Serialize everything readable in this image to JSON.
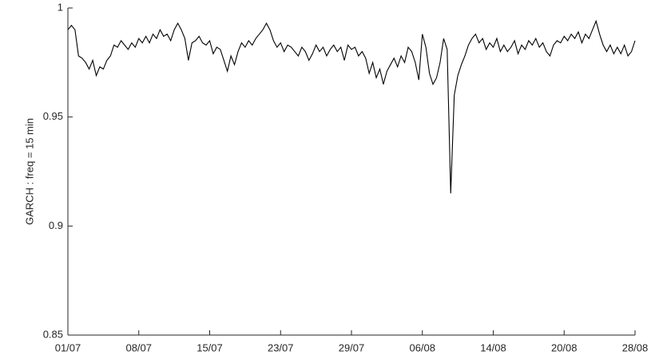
{
  "chart_data": {
    "type": "line",
    "y_label": "GARCH : freq = 15 min",
    "xlim": [
      0,
      8
    ],
    "xticks": [
      {
        "value": 0,
        "label": "01/07"
      },
      {
        "value": 1,
        "label": "08/07"
      },
      {
        "value": 2,
        "label": "15/07"
      },
      {
        "value": 3,
        "label": "23/07"
      },
      {
        "value": 4,
        "label": "29/07"
      },
      {
        "value": 5,
        "label": "06/08"
      },
      {
        "value": 6,
        "label": "14/08"
      },
      {
        "value": 7,
        "label": "20/08"
      },
      {
        "value": 8,
        "label": "28/08"
      }
    ],
    "ylim": [
      0.85,
      1
    ],
    "yticks": [
      0.85,
      0.9,
      0.95,
      1
    ],
    "grid": false,
    "x": [
      0,
      0.05,
      0.1,
      0.15,
      0.2,
      0.25,
      0.3,
      0.35,
      0.4,
      0.45,
      0.5,
      0.55,
      0.6,
      0.65,
      0.7,
      0.75,
      0.8,
      0.85,
      0.9,
      0.95,
      1,
      1.05,
      1.1,
      1.15,
      1.2,
      1.25,
      1.3,
      1.35,
      1.4,
      1.45,
      1.5,
      1.55,
      1.6,
      1.65,
      1.7,
      1.75,
      1.8,
      1.85,
      1.9,
      1.95,
      2,
      2.05,
      2.1,
      2.15,
      2.2,
      2.25,
      2.3,
      2.35,
      2.4,
      2.45,
      2.5,
      2.55,
      2.6,
      2.65,
      2.7,
      2.75,
      2.8,
      2.85,
      2.9,
      2.95,
      3,
      3.05,
      3.1,
      3.15,
      3.2,
      3.25,
      3.3,
      3.35,
      3.4,
      3.45,
      3.5,
      3.55,
      3.6,
      3.65,
      3.7,
      3.75,
      3.8,
      3.85,
      3.9,
      3.95,
      4,
      4.05,
      4.1,
      4.15,
      4.2,
      4.25,
      4.3,
      4.35,
      4.4,
      4.45,
      4.5,
      4.55,
      4.6,
      4.65,
      4.7,
      4.75,
      4.8,
      4.85,
      4.9,
      4.95,
      5,
      5.05,
      5.1,
      5.15,
      5.2,
      5.25,
      5.3,
      5.35,
      5.4,
      5.45,
      5.5,
      5.55,
      5.6,
      5.65,
      5.7,
      5.75,
      5.8,
      5.85,
      5.9,
      5.95,
      6,
      6.05,
      6.1,
      6.15,
      6.2,
      6.25,
      6.3,
      6.35,
      6.4,
      6.45,
      6.5,
      6.55,
      6.6,
      6.65,
      6.7,
      6.75,
      6.8,
      6.85,
      6.9,
      6.95,
      7,
      7.05,
      7.1,
      7.15,
      7.2,
      7.25,
      7.3,
      7.35,
      7.4,
      7.45,
      7.5,
      7.55,
      7.6,
      7.65,
      7.7,
      7.75,
      7.8,
      7.85,
      7.9,
      7.95,
      8
    ],
    "series": [
      {
        "color": "#000000",
        "values": [
          0.99,
          0.992,
          0.99,
          0.978,
          0.977,
          0.975,
          0.972,
          0.976,
          0.969,
          0.973,
          0.972,
          0.976,
          0.978,
          0.983,
          0.982,
          0.985,
          0.983,
          0.981,
          0.984,
          0.982,
          0.986,
          0.984,
          0.987,
          0.984,
          0.988,
          0.986,
          0.99,
          0.987,
          0.988,
          0.985,
          0.99,
          0.993,
          0.99,
          0.986,
          0.976,
          0.984,
          0.985,
          0.987,
          0.984,
          0.983,
          0.985,
          0.979,
          0.982,
          0.981,
          0.976,
          0.971,
          0.978,
          0.974,
          0.98,
          0.984,
          0.982,
          0.985,
          0.983,
          0.986,
          0.988,
          0.99,
          0.993,
          0.99,
          0.985,
          0.982,
          0.984,
          0.98,
          0.983,
          0.982,
          0.98,
          0.978,
          0.982,
          0.98,
          0.976,
          0.979,
          0.983,
          0.98,
          0.982,
          0.978,
          0.981,
          0.983,
          0.98,
          0.982,
          0.976,
          0.983,
          0.981,
          0.982,
          0.978,
          0.98,
          0.977,
          0.97,
          0.975,
          0.968,
          0.972,
          0.965,
          0.971,
          0.974,
          0.977,
          0.973,
          0.978,
          0.975,
          0.982,
          0.98,
          0.975,
          0.967,
          0.988,
          0.982,
          0.97,
          0.965,
          0.968,
          0.975,
          0.986,
          0.981,
          0.915,
          0.96,
          0.969,
          0.974,
          0.978,
          0.983,
          0.986,
          0.988,
          0.984,
          0.986,
          0.981,
          0.984,
          0.982,
          0.986,
          0.98,
          0.983,
          0.98,
          0.982,
          0.985,
          0.979,
          0.983,
          0.981,
          0.985,
          0.983,
          0.986,
          0.982,
          0.984,
          0.98,
          0.978,
          0.983,
          0.985,
          0.984,
          0.987,
          0.985,
          0.988,
          0.986,
          0.989,
          0.984,
          0.988,
          0.986,
          0.99,
          0.994,
          0.988,
          0.983,
          0.98,
          0.983,
          0.979,
          0.982,
          0.979,
          0.983,
          0.978,
          0.98,
          0.985
        ]
      }
    ]
  }
}
